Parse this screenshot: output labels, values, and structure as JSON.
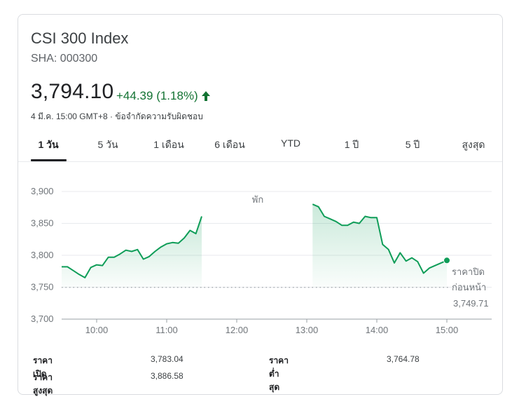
{
  "header": {
    "title": "CSI 300 Index",
    "ticker": "SHA: 000300",
    "price": "3,794.10",
    "change": "+44.39 (1.18%)",
    "date": "4 มี.ค. 15:00 GMT+8",
    "separator": "·",
    "disclaimer": "ข้อจำกัดความรับผิดชอบ"
  },
  "colors": {
    "up": "#137333",
    "line": "#0f9d58",
    "grid": "#e8eaed",
    "dotted": "#9aa0a6"
  },
  "tabs": [
    {
      "label": "1 วัน",
      "active": true
    },
    {
      "label": "5 วัน",
      "active": false
    },
    {
      "label": "1 เดือน",
      "active": false
    },
    {
      "label": "6 เดือน",
      "active": false
    },
    {
      "label": "YTD",
      "active": false
    },
    {
      "label": "1 ปี",
      "active": false
    },
    {
      "label": "5 ปี",
      "active": false
    },
    {
      "label": "สูงสุด",
      "active": false
    }
  ],
  "chart_data": {
    "type": "line",
    "ylim": [
      3700,
      3900
    ],
    "yticks": [
      3700,
      3750,
      3800,
      3850,
      3900
    ],
    "ytick_labels": [
      "3,700",
      "3,750",
      "3,800",
      "3,850",
      "3,900"
    ],
    "xlim": [
      "09:30",
      "15:00"
    ],
    "xticks": [
      "10:00",
      "11:00",
      "12:00",
      "13:00",
      "14:00",
      "15:00"
    ],
    "break_label": "พัก",
    "prev_close": 3749.71,
    "prev_close_label_1": "ราคาปิด",
    "prev_close_label_2": "ก่อนหน้า",
    "prev_close_value": "3,749.71",
    "morning": [
      [
        "09:30",
        3782
      ],
      [
        "09:35",
        3782
      ],
      [
        "09:40",
        3776
      ],
      [
        "09:45",
        3770
      ],
      [
        "09:50",
        3765
      ],
      [
        "09:55",
        3781
      ],
      [
        "10:00",
        3785
      ],
      [
        "10:05",
        3784
      ],
      [
        "10:10",
        3797
      ],
      [
        "10:15",
        3797
      ],
      [
        "10:20",
        3802
      ],
      [
        "10:25",
        3808
      ],
      [
        "10:30",
        3806
      ],
      [
        "10:35",
        3809
      ],
      [
        "10:40",
        3794
      ],
      [
        "10:45",
        3798
      ],
      [
        "10:50",
        3806
      ],
      [
        "10:55",
        3813
      ],
      [
        "11:00",
        3818
      ],
      [
        "11:05",
        3820
      ],
      [
        "11:10",
        3819
      ],
      [
        "11:15",
        3827
      ],
      [
        "11:20",
        3839
      ],
      [
        "11:25",
        3834
      ],
      [
        "11:30",
        3861
      ]
    ],
    "afternoon": [
      [
        "13:05",
        3880
      ],
      [
        "13:10",
        3876
      ],
      [
        "13:15",
        3861
      ],
      [
        "13:20",
        3857
      ],
      [
        "13:25",
        3853
      ],
      [
        "13:30",
        3847
      ],
      [
        "13:35",
        3847
      ],
      [
        "13:40",
        3852
      ],
      [
        "13:45",
        3850
      ],
      [
        "13:50",
        3861
      ],
      [
        "13:55",
        3859
      ],
      [
        "14:00",
        3859
      ],
      [
        "14:05",
        3817
      ],
      [
        "14:10",
        3809
      ],
      [
        "14:15",
        3788
      ],
      [
        "14:20",
        3804
      ],
      [
        "14:25",
        3791
      ],
      [
        "14:30",
        3796
      ],
      [
        "14:35",
        3790
      ],
      [
        "14:40",
        3772
      ],
      [
        "14:45",
        3780
      ],
      [
        "14:50",
        3784
      ],
      [
        "14:55",
        3788
      ],
      [
        "15:00",
        3792
      ]
    ]
  },
  "stats": {
    "open_label": "ราคาเปิด",
    "open_value": "3,783.04",
    "high_label": "ราคาสูงสุด",
    "high_value": "3,886.58",
    "low_label": "ราคาต่ำสุด",
    "low_value": "3,764.78"
  }
}
